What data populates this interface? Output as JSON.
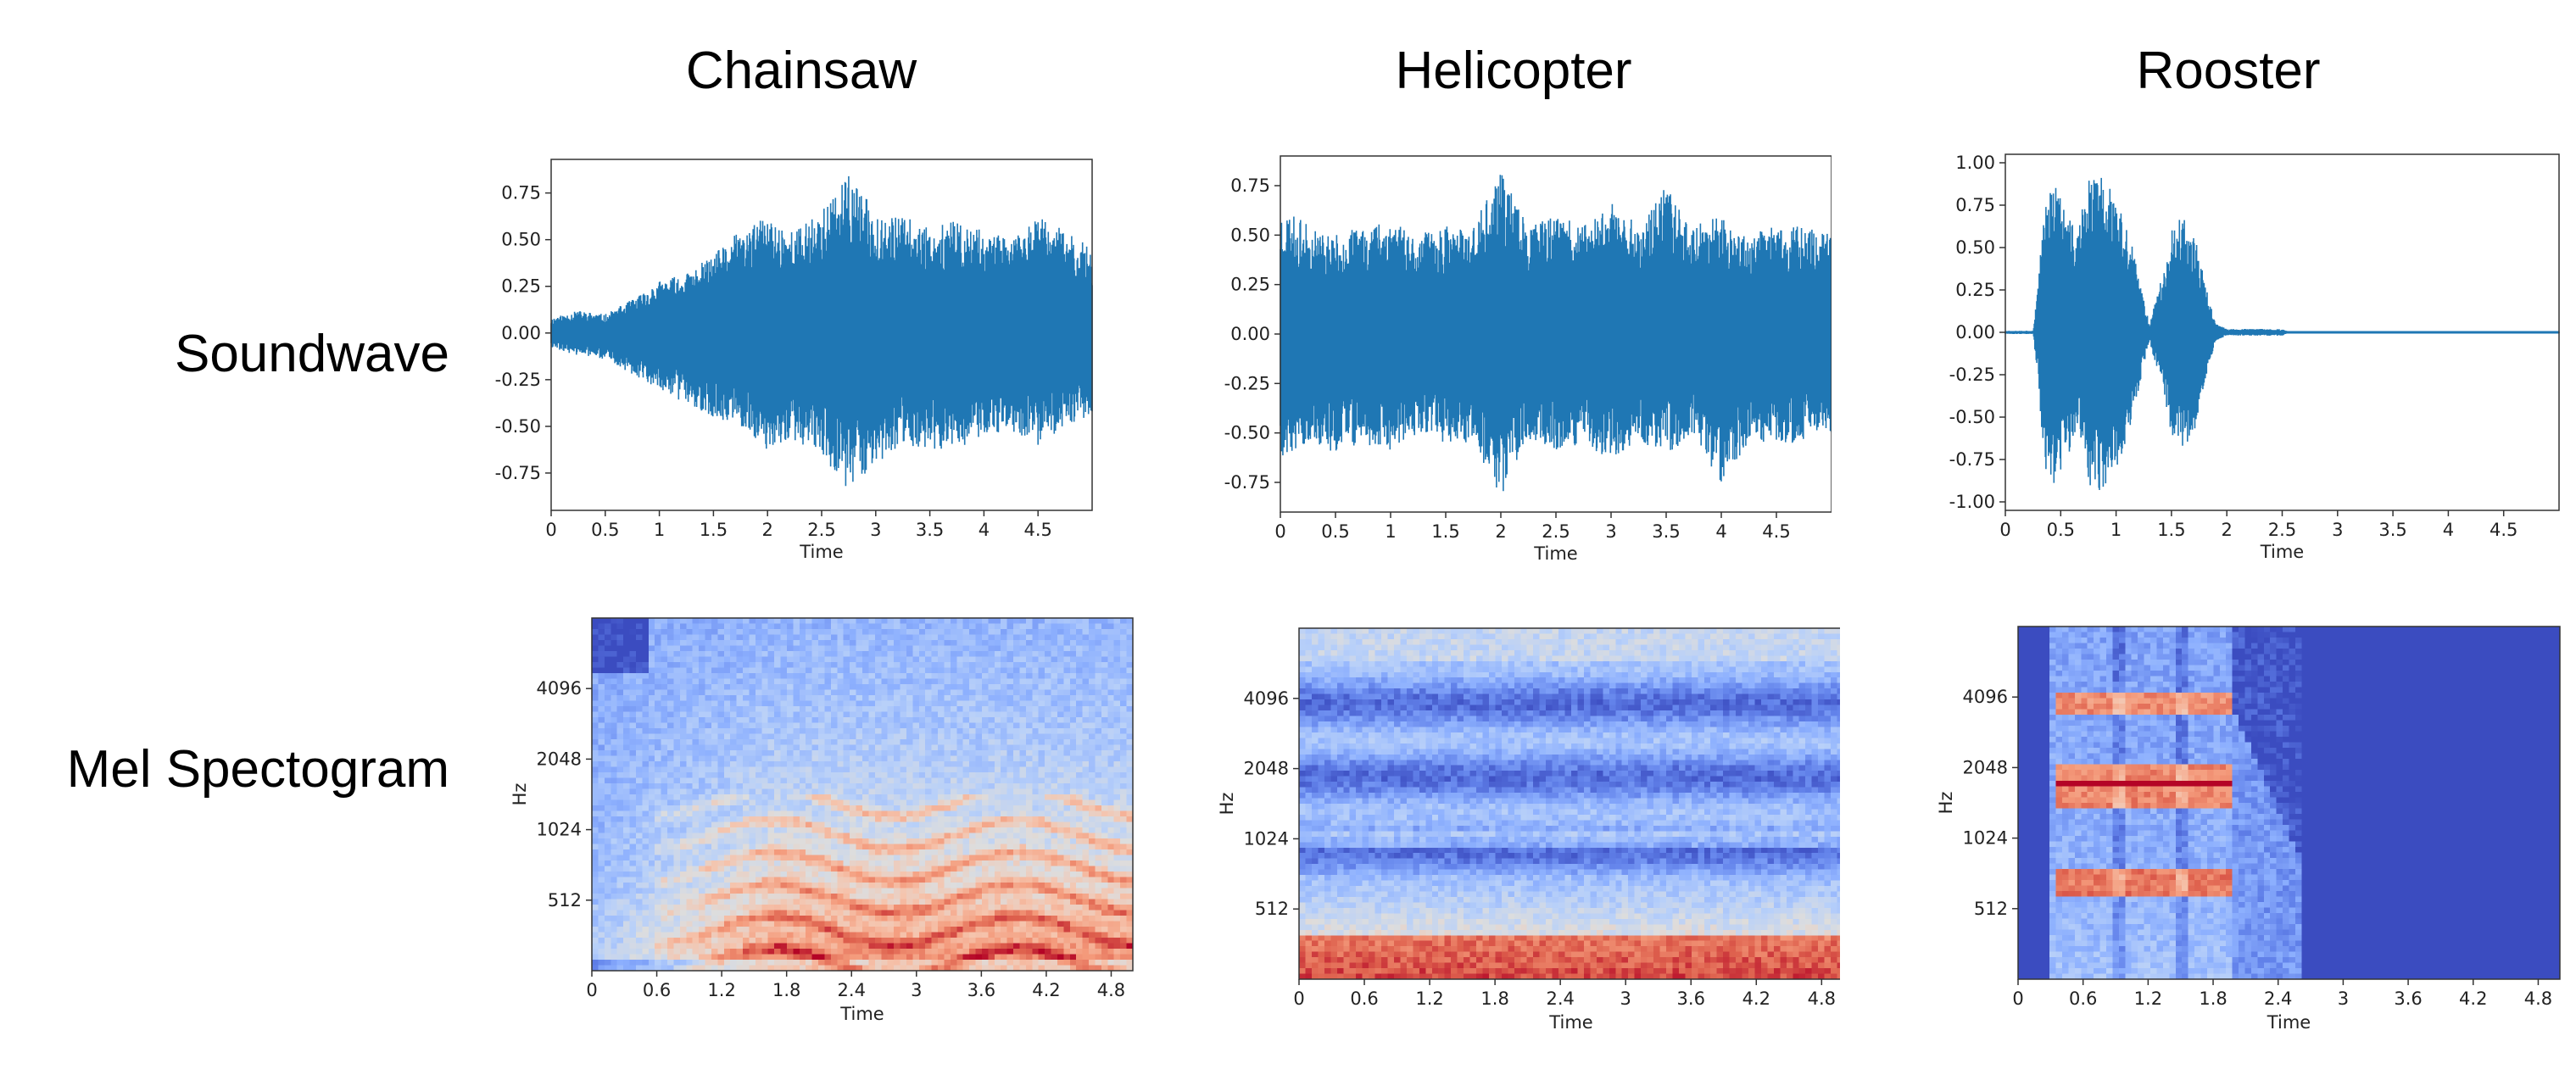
{
  "columns": [
    "Chainsaw",
    "Helicopter",
    "Rooster"
  ],
  "rows": [
    "Soundwave",
    "Mel Spectogram"
  ],
  "chart_data": [
    {
      "type": "area",
      "subtype": "waveform",
      "panel": "soundwave-chainsaw",
      "xlabel": "Time",
      "ylabel": "",
      "xlim": [
        0,
        5.0
      ],
      "ylim": [
        -0.95,
        0.93
      ],
      "xticks": [
        "0",
        "0.5",
        "1",
        "1.5",
        "2",
        "2.5",
        "3",
        "3.5",
        "4",
        "4.5"
      ],
      "yticks": [
        "-0.75",
        "-0.50",
        "-0.25",
        "0.00",
        "0.25",
        "0.50",
        "0.75"
      ],
      "color": "#1f77b4",
      "series": [
        {
          "x": [
            0,
            0.25,
            0.5,
            0.75,
            1.0,
            1.25,
            1.5,
            1.75,
            2.0,
            2.25,
            2.5,
            2.75,
            3.0,
            3.25,
            3.5,
            3.75,
            4.0,
            4.25,
            4.5,
            4.75,
            5.0
          ],
          "upper": [
            0.08,
            0.12,
            0.1,
            0.18,
            0.28,
            0.32,
            0.42,
            0.55,
            0.62,
            0.55,
            0.66,
            0.84,
            0.66,
            0.62,
            0.58,
            0.6,
            0.55,
            0.5,
            0.62,
            0.55,
            0.45
          ],
          "lower": [
            -0.08,
            -0.12,
            -0.14,
            -0.22,
            -0.3,
            -0.38,
            -0.45,
            -0.5,
            -0.65,
            -0.58,
            -0.65,
            -0.85,
            -0.7,
            -0.6,
            -0.62,
            -0.62,
            -0.55,
            -0.52,
            -0.6,
            -0.5,
            -0.45
          ]
        }
      ]
    },
    {
      "type": "area",
      "subtype": "waveform",
      "panel": "soundwave-helicopter",
      "xlabel": "Time",
      "ylabel": "",
      "xlim": [
        0,
        5.0
      ],
      "ylim": [
        -0.9,
        0.9
      ],
      "xticks": [
        "0",
        "0.5",
        "1",
        "1.5",
        "2",
        "2.5",
        "3",
        "3.5",
        "4",
        "4.5"
      ],
      "yticks": [
        "-0.75",
        "-0.50",
        "-0.25",
        "0.00",
        "0.25",
        "0.50",
        "0.75"
      ],
      "color": "#1f77b4",
      "series": [
        {
          "x": [
            0,
            0.25,
            0.5,
            0.75,
            1.0,
            1.25,
            1.5,
            1.75,
            2.0,
            2.25,
            2.5,
            2.75,
            3.0,
            3.25,
            3.5,
            3.75,
            4.0,
            4.25,
            4.5,
            4.75,
            5.0
          ],
          "upper": [
            0.65,
            0.55,
            0.5,
            0.55,
            0.6,
            0.5,
            0.55,
            0.55,
            0.82,
            0.55,
            0.6,
            0.55,
            0.7,
            0.55,
            0.75,
            0.55,
            0.6,
            0.5,
            0.55,
            0.55,
            0.5
          ],
          "lower": [
            -0.65,
            -0.55,
            -0.6,
            -0.55,
            -0.6,
            -0.5,
            -0.55,
            -0.55,
            -0.82,
            -0.55,
            -0.6,
            -0.55,
            -0.65,
            -0.55,
            -0.6,
            -0.55,
            -0.75,
            -0.55,
            -0.55,
            -0.55,
            -0.5
          ]
        }
      ]
    },
    {
      "type": "area",
      "subtype": "waveform",
      "panel": "soundwave-rooster",
      "xlabel": "Time",
      "ylabel": "",
      "xlim": [
        0,
        5.0
      ],
      "ylim": [
        -1.05,
        1.05
      ],
      "xticks": [
        "0",
        "0.5",
        "1",
        "1.5",
        "2",
        "2.5",
        "3",
        "3.5",
        "4",
        "4.5"
      ],
      "yticks": [
        "-1.00",
        "-0.75",
        "-0.50",
        "-0.25",
        "0.00",
        "0.25",
        "0.50",
        "0.75",
        "1.00"
      ],
      "color": "#1f77b4",
      "series": [
        {
          "x": [
            0,
            0.25,
            0.3,
            0.35,
            0.45,
            0.55,
            0.65,
            0.75,
            0.85,
            0.95,
            1.05,
            1.15,
            1.25,
            1.3,
            1.4,
            1.5,
            1.6,
            1.7,
            1.8,
            1.9,
            2.0,
            2.5,
            2.55,
            3.0,
            5.0
          ],
          "upper": [
            0.01,
            0.01,
            0.3,
            0.8,
            0.9,
            0.7,
            0.6,
            0.9,
            0.95,
            0.85,
            0.7,
            0.5,
            0.2,
            0.05,
            0.3,
            0.6,
            0.7,
            0.6,
            0.3,
            0.05,
            0.02,
            0.02,
            0.005,
            0.005,
            0.005
          ],
          "lower": [
            -0.01,
            -0.01,
            -0.3,
            -0.8,
            -0.9,
            -0.75,
            -0.6,
            -0.9,
            -0.95,
            -0.85,
            -0.75,
            -0.5,
            -0.2,
            -0.05,
            -0.3,
            -0.6,
            -0.7,
            -0.6,
            -0.3,
            -0.05,
            -0.02,
            -0.02,
            -0.005,
            -0.005,
            -0.005
          ]
        }
      ]
    },
    {
      "type": "heatmap",
      "subtype": "mel-spectrogram",
      "panel": "melspec-chainsaw",
      "xlabel": "Time",
      "ylabel": "Hz",
      "xticks": [
        "0",
        "0.6",
        "1.2",
        "1.8",
        "2.4",
        "3",
        "3.6",
        "4.2",
        "4.8"
      ],
      "yticks": [
        "512",
        "1024",
        "2048",
        "4096"
      ],
      "colormap": "coolwarm"
    },
    {
      "type": "heatmap",
      "subtype": "mel-spectrogram",
      "panel": "melspec-helicopter",
      "xlabel": "Time",
      "ylabel": "Hz",
      "xticks": [
        "0",
        "0.6",
        "1.2",
        "1.8",
        "2.4",
        "3",
        "3.6",
        "4.2",
        "4.8"
      ],
      "yticks": [
        "512",
        "1024",
        "2048",
        "4096"
      ],
      "colormap": "coolwarm"
    },
    {
      "type": "heatmap",
      "subtype": "mel-spectrogram",
      "panel": "melspec-rooster",
      "xlabel": "Time",
      "ylabel": "Hz",
      "xticks": [
        "0",
        "0.6",
        "1.2",
        "1.8",
        "2.4",
        "3",
        "3.6",
        "4.2",
        "4.8"
      ],
      "yticks": [
        "512",
        "1024",
        "2048",
        "4096"
      ],
      "colormap": "coolwarm"
    }
  ]
}
